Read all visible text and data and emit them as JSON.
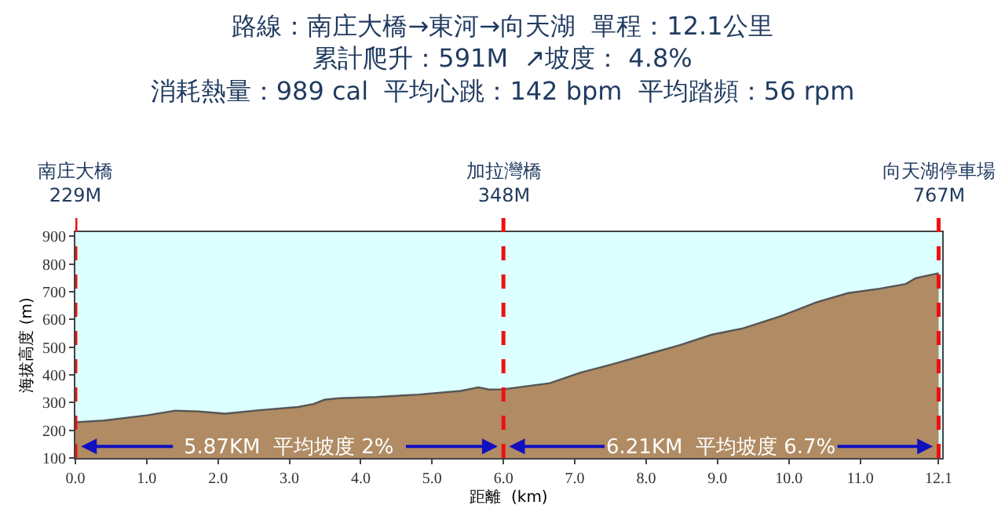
{
  "chart_data": {
    "type": "area",
    "title": "路線：南庄大橋→東河→向天湖  單程：12.1公里",
    "subtitle": "累計爬升：591M  ↗坡度： 4.8%\n消耗熱量：989 cal  平均心跳：142 bpm  平均踏頻：56 rpm",
    "xlabel": "距離  (km)",
    "ylabel": "海拔高度 (m)",
    "x": [
      0,
      0.4,
      1.0,
      1.4,
      1.73,
      2.1,
      2.6,
      3.12,
      3.34,
      3.49,
      3.71,
      4.22,
      4.81,
      5.4,
      5.65,
      5.8,
      6.0,
      6.65,
      7.08,
      7.52,
      7.96,
      8.48,
      8.92,
      9.36,
      9.88,
      10.39,
      10.83,
      11.27,
      11.64,
      11.78,
      12.1
    ],
    "series": [
      {
        "color": "#b08b63",
        "values": [
          229,
          235,
          254,
          271,
          268,
          260,
          273,
          284,
          295,
          310,
          316,
          320,
          329,
          342,
          355,
          347,
          348,
          370,
          408,
          438,
          470,
          508,
          545,
          568,
          611,
          662,
          695,
          711,
          728,
          749,
          767
        ]
      }
    ],
    "xlim": [
      0,
      12.15
    ],
    "xticks": [
      {
        "value": 0,
        "label": "0.0"
      },
      {
        "value": 1,
        "label": "1.0"
      },
      {
        "value": 2,
        "label": "2.0"
      },
      {
        "value": 3,
        "label": "3.0"
      },
      {
        "value": 4,
        "label": "4.0"
      },
      {
        "value": 5,
        "label": "5.0"
      },
      {
        "value": 6,
        "label": "6.0"
      },
      {
        "value": 7,
        "label": "7.0"
      },
      {
        "value": 8,
        "label": "8.0"
      },
      {
        "value": 9,
        "label": "9.0"
      },
      {
        "value": 10,
        "label": "10.0"
      },
      {
        "value": 11,
        "label": "11.0"
      },
      {
        "value": 12.1,
        "label": "12.1"
      }
    ],
    "ylim": [
      100,
      915
    ],
    "yticks": [
      100,
      200,
      300,
      400,
      500,
      600,
      700,
      800,
      900
    ],
    "ref_lines": [
      {
        "axis": "x",
        "value": 0,
        "label": "南庄大橋\n229M",
        "color": "#ee1111",
        "line_style": "dashed"
      },
      {
        "axis": "x",
        "value": 6.0,
        "label": "加拉灣橋\n348M",
        "color": "#ee1111",
        "line_style": "dashed"
      },
      {
        "axis": "x",
        "value": 12.1,
        "label": "向天湖停車場\n767M",
        "color": "#ee1111",
        "line_style": "dashed"
      }
    ],
    "annotations": [
      {
        "text": "5.87KM  平均坡度 2%",
        "x": 0,
        "y": 142
      },
      {
        "text": "6.21KM  平均坡度 6.7%",
        "x": 6.0,
        "y": 142
      }
    ],
    "grid": false
  }
}
